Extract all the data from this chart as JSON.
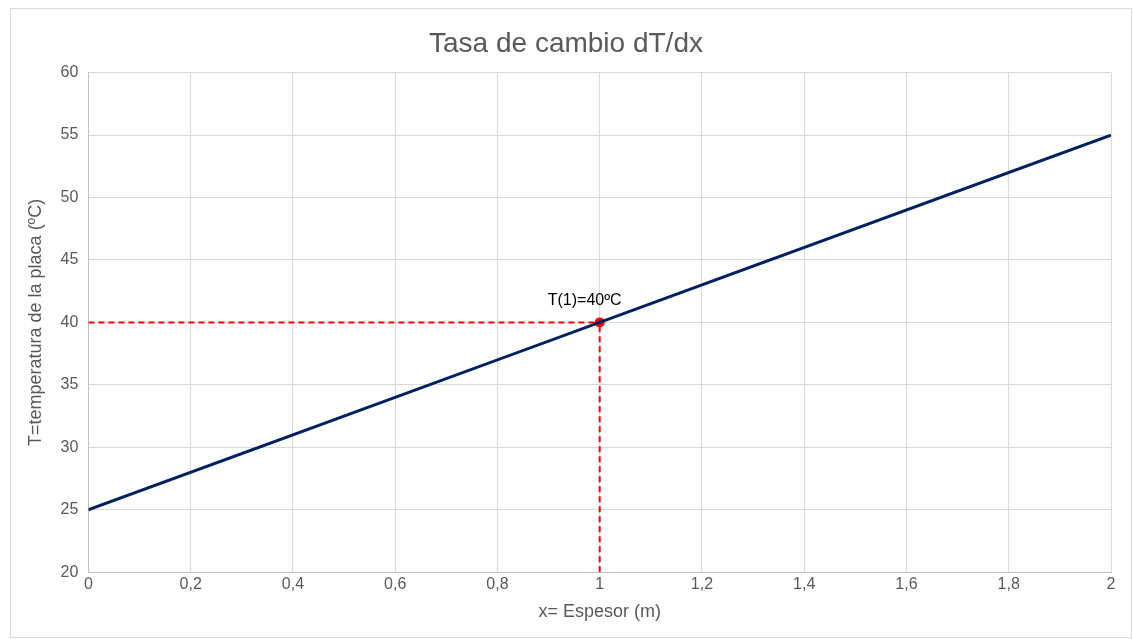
{
  "chart_data": {
    "type": "line",
    "title": "Tasa de cambio dT/dx",
    "xlabel": "x= Espesor (m)",
    "ylabel": "T=temperatura de la placa (ºC)",
    "series": [
      {
        "type": "line",
        "color": "#002060",
        "x": [
          0,
          2
        ],
        "values": [
          25,
          55
        ],
        "marker": "none",
        "line_style": "solid"
      },
      {
        "type": "line",
        "color": "#ff0000",
        "x": [
          0,
          1
        ],
        "values": [
          40,
          40
        ],
        "marker": "none",
        "line_style": "dashed"
      },
      {
        "type": "line",
        "color": "#ff0000",
        "x": [
          1,
          1
        ],
        "values": [
          20,
          40
        ],
        "marker": "none",
        "line_style": "dashed"
      },
      {
        "type": "scatter",
        "color": "#ff0000",
        "x": [
          1
        ],
        "values": [
          40
        ],
        "marker": "circle"
      }
    ],
    "annotations": [
      {
        "text": "T(1)=40ºC",
        "x": 1,
        "y": 40
      }
    ],
    "xlim": [
      0,
      2
    ],
    "xticks": [
      0,
      {
        "value": 0.2,
        "label": "0,2"
      },
      {
        "value": 0.4,
        "label": "0,4"
      },
      {
        "value": 0.6,
        "label": "0,6"
      },
      {
        "value": 0.8,
        "label": "0,8"
      },
      1,
      {
        "value": 1.2,
        "label": "1,2"
      },
      {
        "value": 1.4,
        "label": "1,4"
      },
      {
        "value": 1.6,
        "label": "1,6"
      },
      {
        "value": 1.8,
        "label": "1,8"
      },
      2
    ],
    "ylim": [
      20,
      60
    ],
    "yticks": [
      20,
      25,
      30,
      35,
      40,
      45,
      50,
      55,
      60
    ],
    "grid": true,
    "legend": false
  }
}
